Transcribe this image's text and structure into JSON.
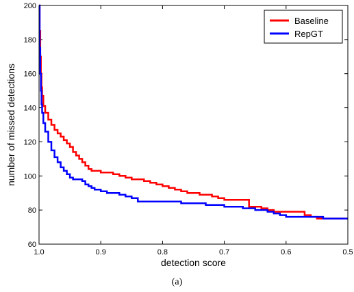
{
  "caption": "(a)",
  "chart_data": {
    "type": "line",
    "xlabel": "detection score",
    "ylabel": "number of missed detections",
    "xlim": [
      1.0,
      0.5
    ],
    "ylim": [
      60,
      200
    ],
    "x_reversed": true,
    "xticks": [
      "1.0",
      "0.9",
      "0.8",
      "0.7",
      "0.6",
      "0.5"
    ],
    "xtick_values": [
      1.0,
      0.9,
      0.8,
      0.7,
      0.6,
      0.5
    ],
    "yticks": [
      "60",
      "80",
      "100",
      "120",
      "140",
      "160",
      "180",
      "200"
    ],
    "ytick_values": [
      60,
      80,
      100,
      120,
      140,
      160,
      180,
      200
    ],
    "grid": false,
    "legend": {
      "position": "top-right"
    },
    "series": [
      {
        "name": "Baseline",
        "color": "#ff0000",
        "x": [
          1.0,
          0.999,
          0.998,
          0.997,
          0.996,
          0.995,
          0.993,
          0.99,
          0.985,
          0.98,
          0.975,
          0.97,
          0.965,
          0.96,
          0.955,
          0.95,
          0.945,
          0.94,
          0.935,
          0.93,
          0.925,
          0.92,
          0.915,
          0.91,
          0.9,
          0.89,
          0.88,
          0.87,
          0.86,
          0.85,
          0.84,
          0.83,
          0.82,
          0.81,
          0.8,
          0.79,
          0.78,
          0.77,
          0.76,
          0.75,
          0.74,
          0.73,
          0.72,
          0.71,
          0.7,
          0.69,
          0.68,
          0.67,
          0.66,
          0.65,
          0.64,
          0.63,
          0.62,
          0.61,
          0.6,
          0.59,
          0.58,
          0.57,
          0.56,
          0.55,
          0.54,
          0.53,
          0.52,
          0.51,
          0.5
        ],
        "y": [
          200,
          185,
          170,
          160,
          152,
          147,
          141,
          137,
          133,
          130,
          127,
          125,
          123,
          121,
          119,
          117,
          114,
          112,
          110,
          108,
          106,
          104,
          103,
          103,
          102,
          102,
          101,
          100,
          99,
          98,
          98,
          97,
          96,
          95,
          94,
          93,
          92,
          91,
          90,
          90,
          89,
          89,
          88,
          87,
          86,
          86,
          86,
          86,
          82,
          82,
          81,
          80,
          79,
          79,
          79,
          79,
          79,
          77,
          76,
          75,
          75,
          75,
          75,
          75,
          75
        ]
      },
      {
        "name": "RepGT",
        "color": "#0000ff",
        "x": [
          1.0,
          0.999,
          0.998,
          0.997,
          0.996,
          0.995,
          0.993,
          0.99,
          0.985,
          0.98,
          0.975,
          0.97,
          0.965,
          0.96,
          0.955,
          0.95,
          0.945,
          0.94,
          0.935,
          0.93,
          0.925,
          0.92,
          0.915,
          0.91,
          0.9,
          0.89,
          0.88,
          0.87,
          0.86,
          0.85,
          0.84,
          0.83,
          0.82,
          0.81,
          0.8,
          0.79,
          0.78,
          0.77,
          0.76,
          0.75,
          0.74,
          0.73,
          0.72,
          0.71,
          0.7,
          0.69,
          0.68,
          0.67,
          0.66,
          0.65,
          0.64,
          0.63,
          0.62,
          0.61,
          0.6,
          0.59,
          0.58,
          0.57,
          0.56,
          0.55,
          0.54,
          0.53,
          0.52,
          0.51,
          0.5
        ],
        "y": [
          200,
          175,
          160,
          150,
          142,
          137,
          131,
          126,
          120,
          115,
          111,
          108,
          105,
          103,
          101,
          99,
          98,
          98,
          98,
          97,
          95,
          94,
          93,
          92,
          91,
          90,
          90,
          89,
          88,
          87,
          85,
          85,
          85,
          85,
          85,
          85,
          85,
          84,
          84,
          84,
          84,
          83,
          83,
          83,
          82,
          82,
          82,
          81,
          81,
          80,
          80,
          79,
          78,
          77,
          76,
          76,
          76,
          76,
          76,
          76,
          75,
          75,
          75,
          75,
          75
        ]
      }
    ]
  }
}
